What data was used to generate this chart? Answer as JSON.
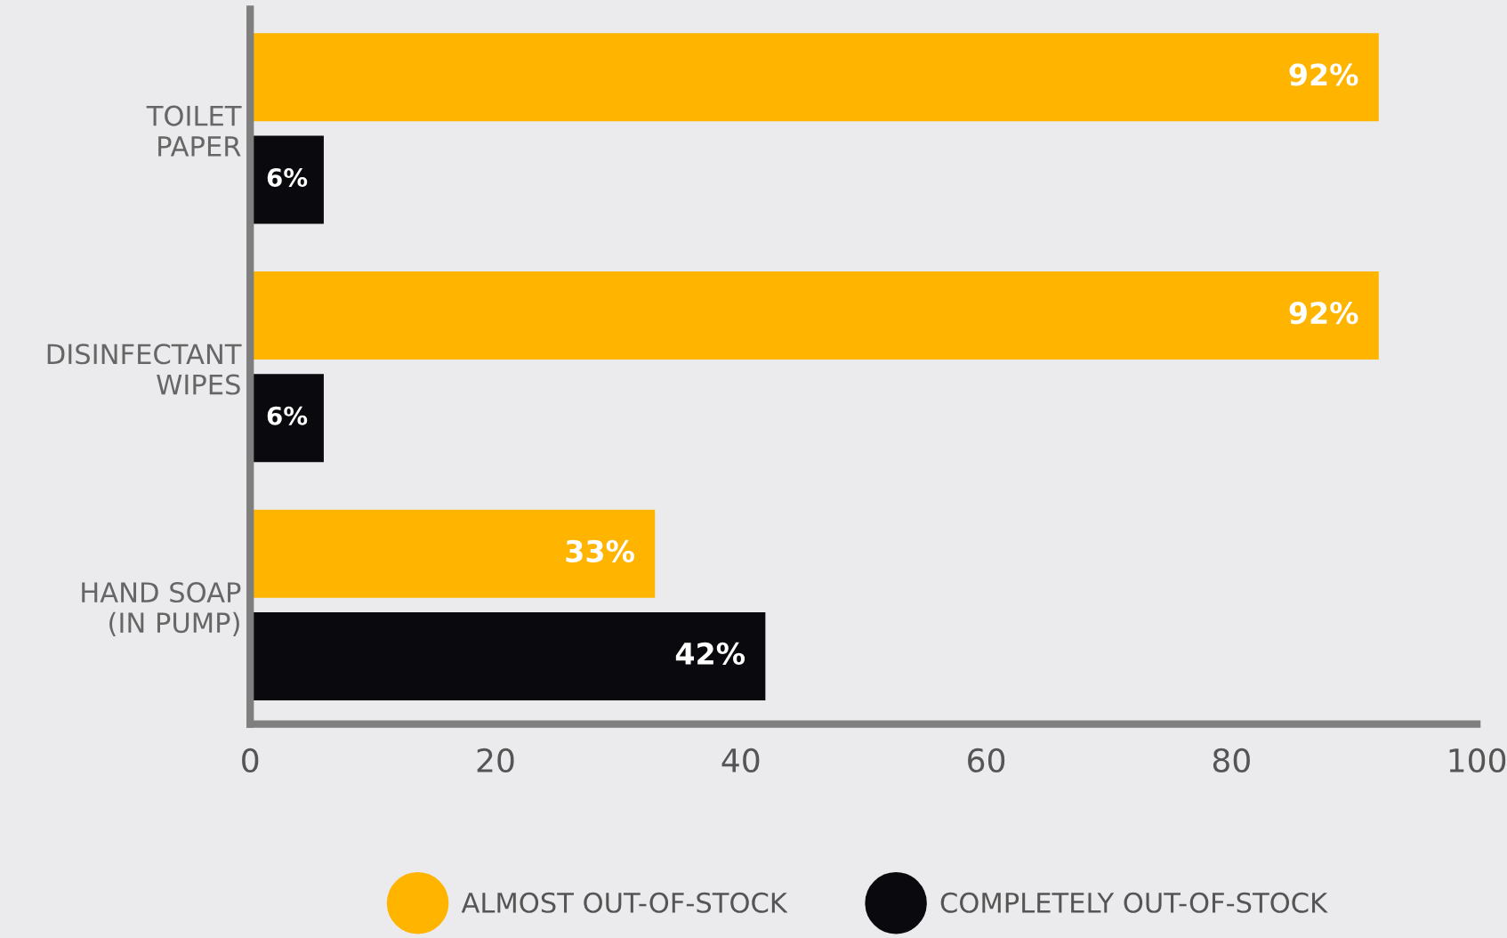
{
  "chart_data": {
    "type": "bar",
    "orientation": "horizontal",
    "categories": [
      "TOILET\nPAPER",
      "DISINFECTANT\nWIPES",
      "HAND SOAP\n(IN PUMP)"
    ],
    "series": [
      {
        "name": "ALMOST OUT-OF-STOCK",
        "color": "#ffb400",
        "values": [
          92,
          92,
          33
        ],
        "value_labels": [
          "92%",
          "92%",
          "33%"
        ]
      },
      {
        "name": "COMPLETELY OUT-OF-STOCK",
        "color": "#0a0a0e",
        "values": [
          6,
          6,
          42
        ],
        "value_labels": [
          "6%",
          "6%",
          "42%"
        ]
      }
    ],
    "xlim": [
      0,
      100
    ],
    "xticks": [
      0,
      20,
      40,
      60,
      80,
      100
    ],
    "grid": false,
    "legend": "bottom"
  }
}
